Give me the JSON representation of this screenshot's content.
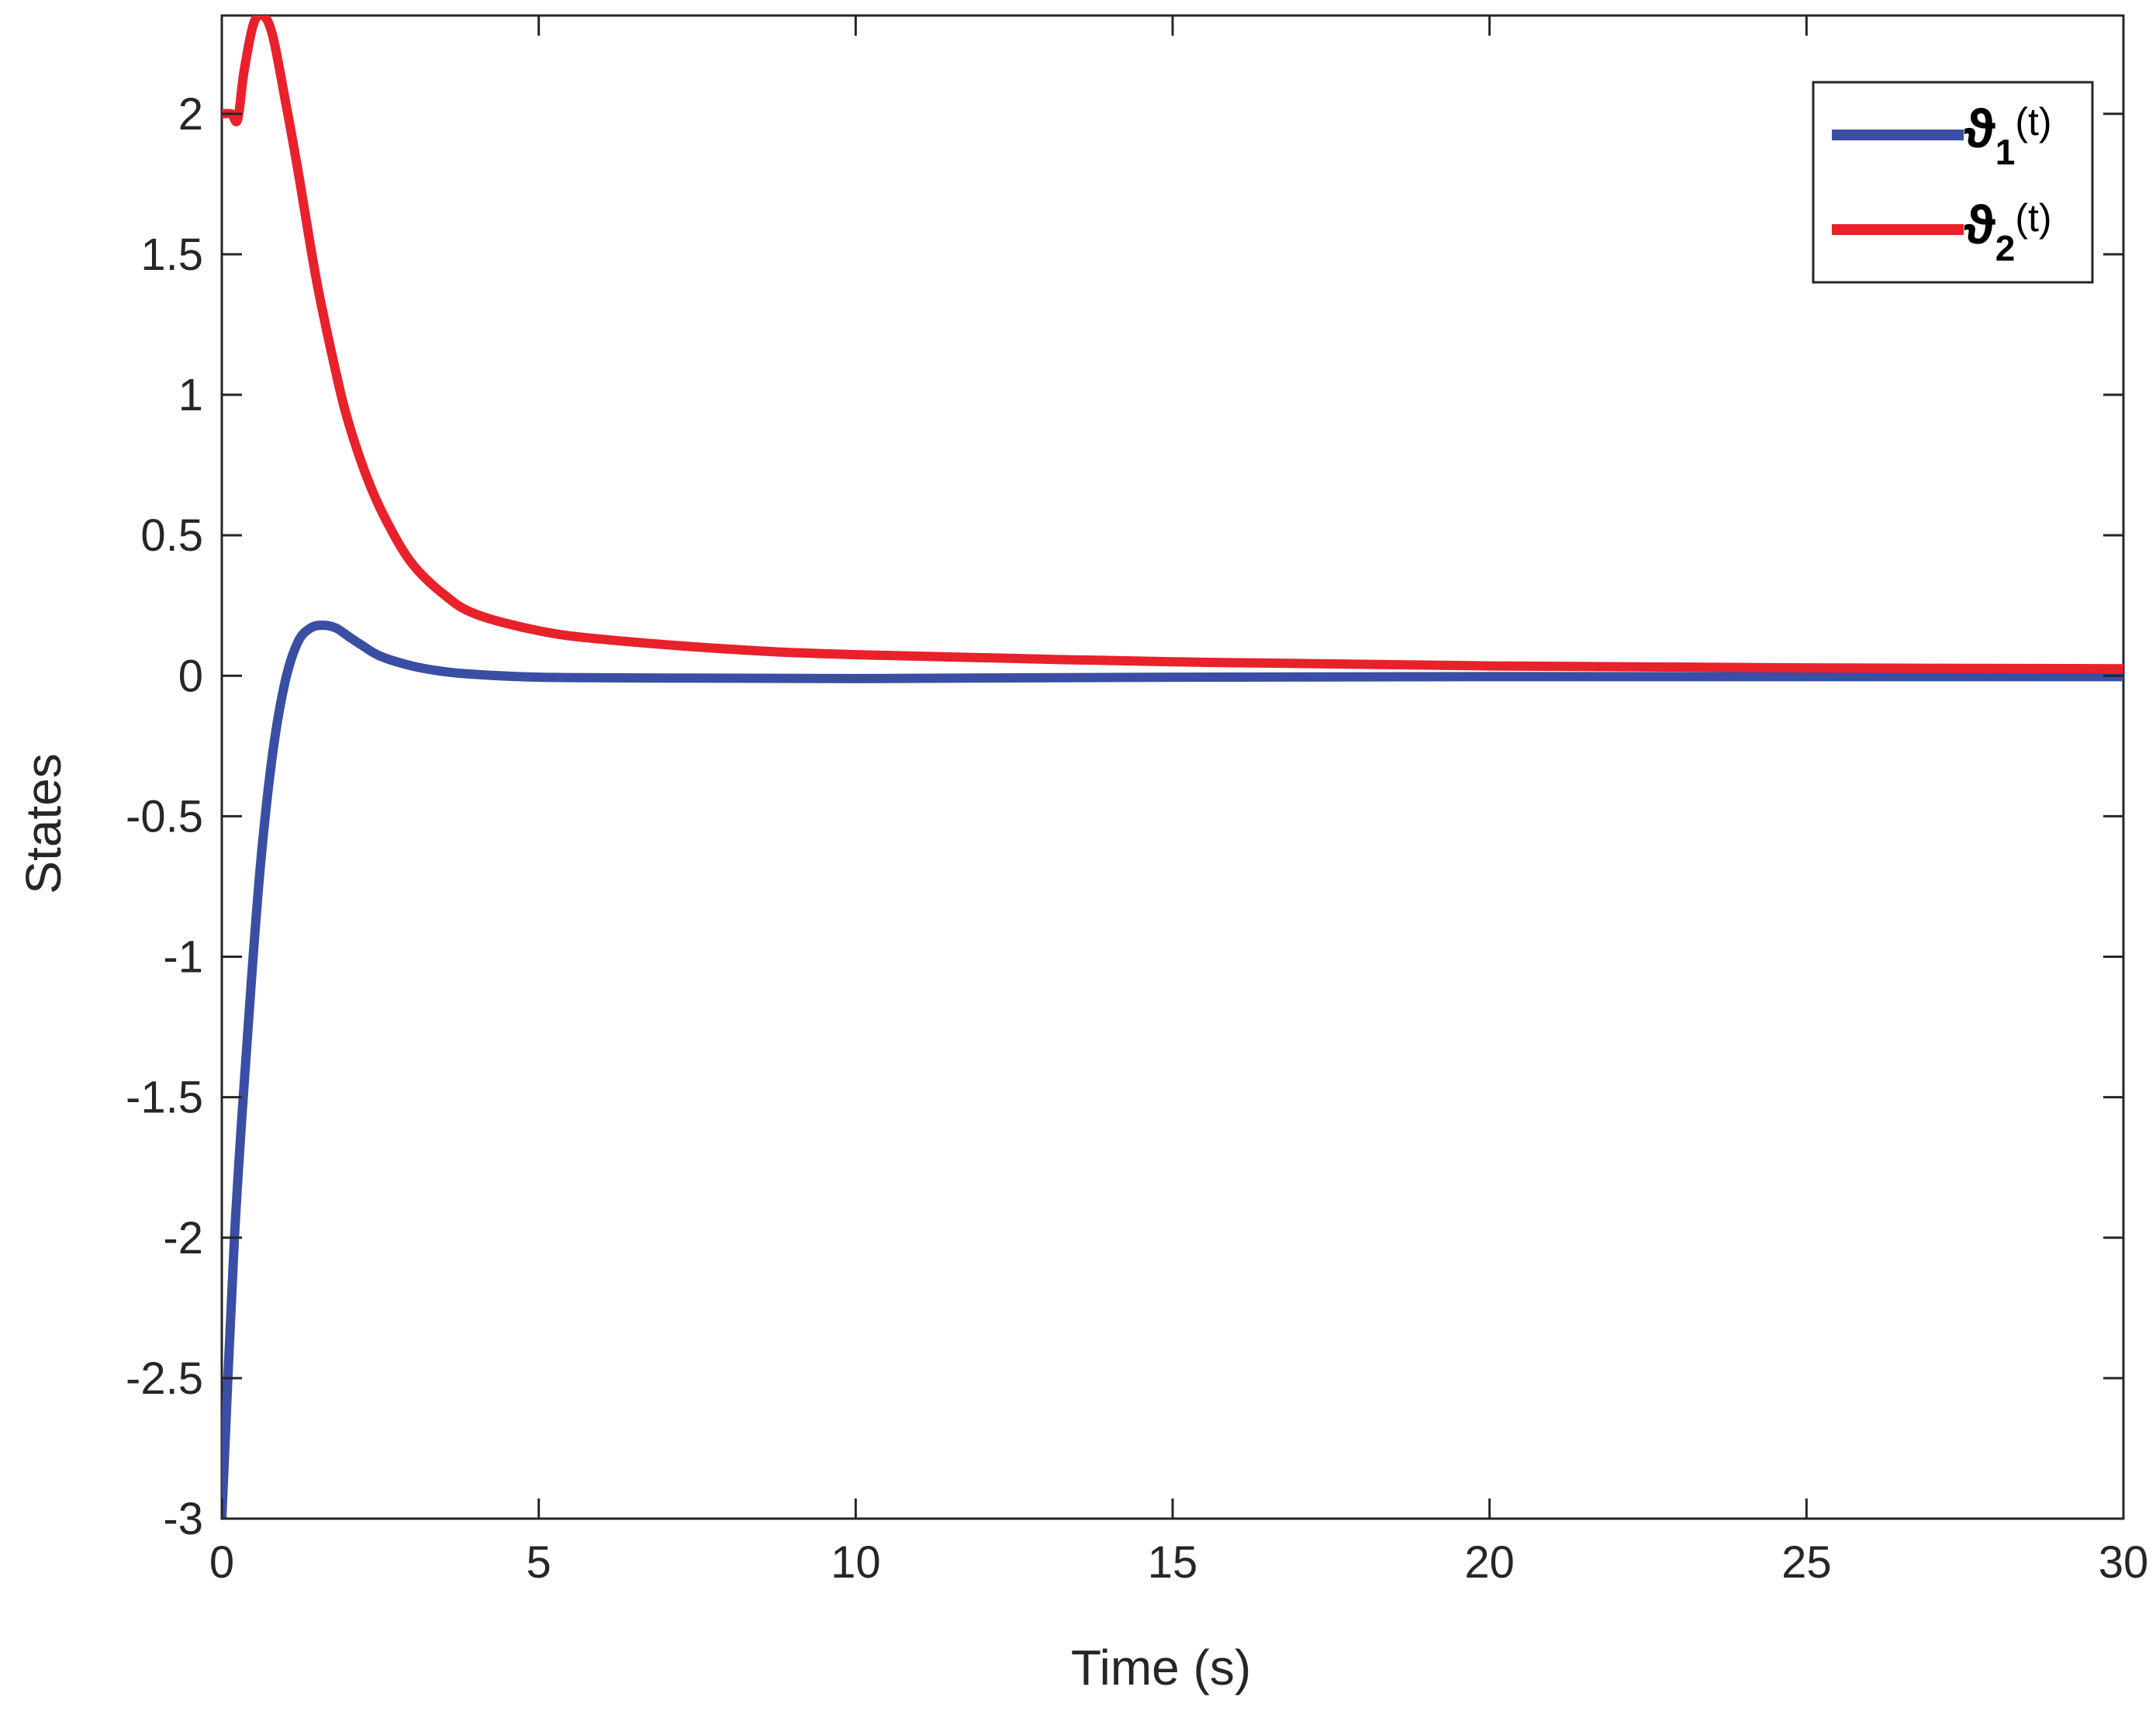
{
  "chart_data": {
    "type": "line",
    "title": "",
    "xlabel": "Time (s)",
    "ylabel": "States",
    "xlim": [
      0,
      30
    ],
    "ylim": [
      -3,
      2.35
    ],
    "xticks": [
      0,
      5,
      10,
      15,
      20,
      25,
      30
    ],
    "yticks": [
      -3,
      -2.5,
      -2,
      -1.5,
      -1,
      -0.5,
      0,
      0.5,
      1,
      1.5,
      2
    ],
    "xtick_labels": [
      "0",
      "5",
      "10",
      "15",
      "20",
      "25",
      "30"
    ],
    "ytick_labels": [
      "-3",
      "-2.5",
      "-2",
      "-1.5",
      "-1",
      "-0.5",
      "0",
      "0.5",
      "1",
      "1.5",
      "2"
    ],
    "grid": false,
    "legend_position": "top-right",
    "series": [
      {
        "name": "ϑ1(t)",
        "legend_symbol": "ϑ",
        "legend_subscript": "1",
        "legend_suffix": "(t)",
        "color": "#3a4ea3",
        "x": [
          0,
          0.2,
          0.4,
          0.6,
          0.8,
          1.0,
          1.2,
          1.4,
          1.6,
          1.8,
          2.0,
          2.2,
          2.5,
          3.0,
          3.5,
          4.0,
          5.0,
          7.0,
          10.0,
          15.0,
          20.0,
          25.0,
          30.0
        ],
        "values": [
          -3.0,
          -2.0,
          -1.3,
          -0.7,
          -0.28,
          -0.02,
          0.12,
          0.17,
          0.18,
          0.17,
          0.14,
          0.11,
          0.07,
          0.035,
          0.015,
          0.005,
          -0.005,
          -0.008,
          -0.01,
          -0.005,
          -0.003,
          -0.003,
          -0.003
        ]
      },
      {
        "name": "ϑ2(t)",
        "legend_symbol": "ϑ",
        "legend_subscript": "2",
        "legend_suffix": "(t)",
        "color": "#e8212b",
        "x": [
          0,
          0.15,
          0.25,
          0.35,
          0.5,
          0.65,
          0.8,
          1.0,
          1.2,
          1.5,
          1.8,
          2.0,
          2.3,
          2.6,
          3.0,
          3.5,
          4.0,
          5.0,
          6.0,
          8.0,
          10.0,
          15.0,
          20.0,
          25.0,
          30.0
        ],
        "values": [
          2.0,
          2.0,
          1.98,
          2.15,
          2.32,
          2.35,
          2.28,
          2.05,
          1.8,
          1.4,
          1.08,
          0.9,
          0.7,
          0.55,
          0.4,
          0.29,
          0.22,
          0.16,
          0.13,
          0.095,
          0.075,
          0.05,
          0.035,
          0.028,
          0.025
        ]
      }
    ]
  }
}
